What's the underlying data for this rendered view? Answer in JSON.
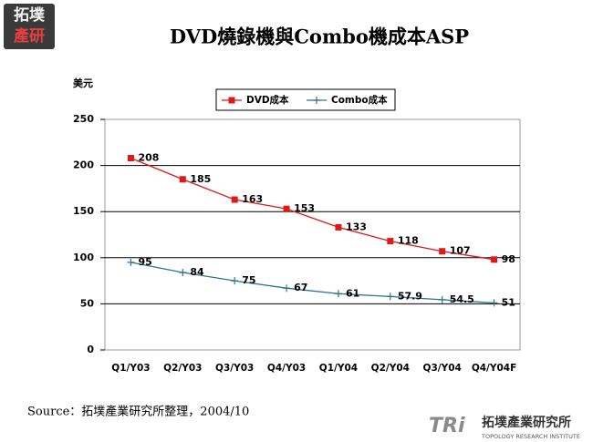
{
  "chart_data": {
    "type": "line",
    "title": "DVD燒錄機與Combo機成本ASP",
    "y_label": "美元",
    "categories": [
      "Q1/Y03",
      "Q2/Y03",
      "Q3/Y03",
      "Q4/Y03",
      "Q1/Y04",
      "Q2/Y04",
      "Q3/Y04",
      "Q4/Y04F"
    ],
    "series": [
      {
        "name": "DVD成本",
        "color": "#e01818",
        "marker": "square",
        "values": [
          208,
          185,
          163,
          153,
          133,
          118,
          107,
          98
        ]
      },
      {
        "name": "Combo成本",
        "color": "#2e7290",
        "marker": "plus",
        "values": [
          95,
          84,
          75,
          67,
          61,
          57.9,
          54.5,
          51
        ]
      }
    ],
    "ylim": [
      0,
      250
    ],
    "yticks": [
      0,
      50,
      100,
      150,
      200,
      250
    ],
    "grid": true,
    "legend": "top"
  },
  "logo_top": [
    "拓墣",
    "產研"
  ],
  "source": "Source：拓墣產業研究所整理，2004/10",
  "footer_logo": {
    "mark": "TRi",
    "name": "拓墣產業研究所",
    "english": "TOPOLOGY RESEARCH INSTITUTE"
  }
}
